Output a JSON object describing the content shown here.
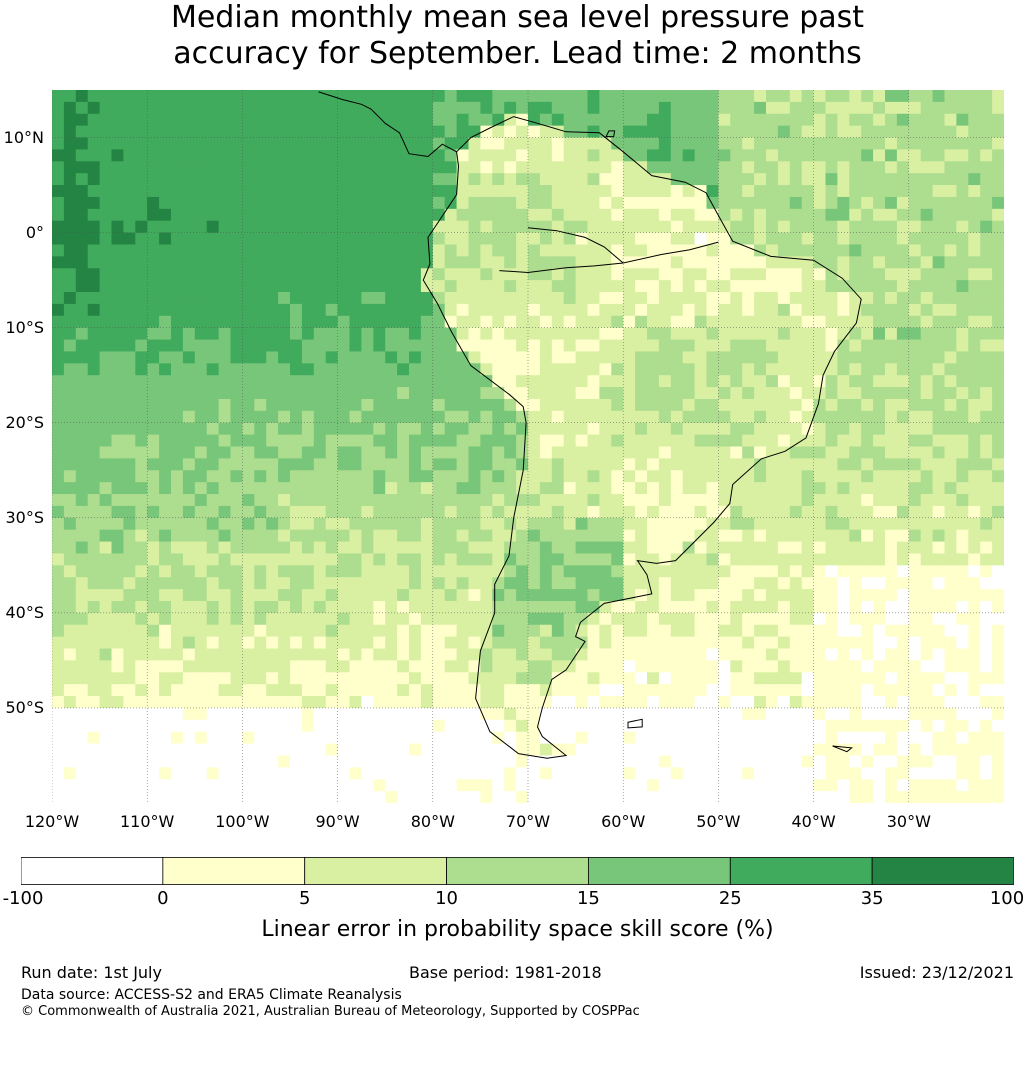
{
  "title_lines": [
    "Median monthly mean sea level pressure past",
    "accuracy for September. Lead time: 2 months"
  ],
  "map": {
    "lon_range": [
      -120,
      -20
    ],
    "lat_range": [
      -60,
      15
    ],
    "lat_ticks": [
      {
        "value": 10,
        "label": "10°N"
      },
      {
        "value": 0,
        "label": "0°"
      },
      {
        "value": -10,
        "label": "10°S"
      },
      {
        "value": -20,
        "label": "20°S"
      },
      {
        "value": -30,
        "label": "30°S"
      },
      {
        "value": -40,
        "label": "40°S"
      },
      {
        "value": -50,
        "label": "50°S"
      }
    ],
    "lon_ticks": [
      {
        "value": -120,
        "label": "120°W"
      },
      {
        "value": -110,
        "label": "110°W"
      },
      {
        "value": -100,
        "label": "100°W"
      },
      {
        "value": -90,
        "label": "90°W"
      },
      {
        "value": -80,
        "label": "80°W"
      },
      {
        "value": -70,
        "label": "70°W"
      },
      {
        "value": -60,
        "label": "60°W"
      },
      {
        "value": -50,
        "label": "50°W"
      },
      {
        "value": -40,
        "label": "40°W"
      },
      {
        "value": -30,
        "label": "30°W"
      }
    ],
    "coastline": [
      [
        -77.5,
        8.5
      ],
      [
        -76,
        10
      ],
      [
        -74,
        11
      ],
      [
        -71.5,
        12.2
      ],
      [
        -69,
        11.5
      ],
      [
        -66,
        10.6
      ],
      [
        -62.5,
        10.5
      ],
      [
        -60,
        8.5
      ],
      [
        -57,
        6
      ],
      [
        -53.5,
        5.3
      ],
      [
        -51.3,
        4.2
      ],
      [
        -50,
        1.8
      ],
      [
        -48.5,
        -0.9
      ],
      [
        -44.5,
        -2.5
      ],
      [
        -40,
        -2.9
      ],
      [
        -37,
        -4.8
      ],
      [
        -35,
        -7
      ],
      [
        -35.5,
        -9.5
      ],
      [
        -37.8,
        -12.5
      ],
      [
        -39,
        -15
      ],
      [
        -39.5,
        -18
      ],
      [
        -40.8,
        -21.6
      ],
      [
        -43,
        -23
      ],
      [
        -45.5,
        -23.8
      ],
      [
        -48.5,
        -26.5
      ],
      [
        -48.8,
        -28.5
      ],
      [
        -50.5,
        -30.5
      ],
      [
        -52.5,
        -32.5
      ],
      [
        -54.5,
        -34.5
      ],
      [
        -56.5,
        -34.8
      ],
      [
        -58.5,
        -34.5
      ],
      [
        -57.5,
        -36
      ],
      [
        -57,
        -38
      ],
      [
        -62,
        -39
      ],
      [
        -64.5,
        -41
      ],
      [
        -65,
        -42.5
      ],
      [
        -64,
        -43
      ],
      [
        -66,
        -46
      ],
      [
        -67.5,
        -47
      ],
      [
        -68.5,
        -50
      ],
      [
        -69,
        -52
      ],
      [
        -68.5,
        -53
      ],
      [
        -66,
        -55
      ],
      [
        -68,
        -55.3
      ],
      [
        -71,
        -54.8
      ],
      [
        -74,
        -52.5
      ],
      [
        -75.5,
        -49
      ],
      [
        -75,
        -44
      ],
      [
        -73.5,
        -40
      ],
      [
        -73.5,
        -37
      ],
      [
        -72,
        -34
      ],
      [
        -71.5,
        -30
      ],
      [
        -70.5,
        -25
      ],
      [
        -70.2,
        -20
      ],
      [
        -70.5,
        -18.3
      ],
      [
        -72,
        -17
      ],
      [
        -76,
        -14
      ],
      [
        -78,
        -10.5
      ],
      [
        -79.5,
        -7.5
      ],
      [
        -81,
        -5
      ],
      [
        -80.3,
        -3.3
      ],
      [
        -80.5,
        -0.5
      ],
      [
        -79.5,
        1
      ],
      [
        -78.5,
        2.5
      ],
      [
        -77.5,
        4
      ],
      [
        -77.3,
        7
      ],
      [
        -77.5,
        8.5
      ]
    ],
    "central_america": [
      [
        -77.5,
        8.5
      ],
      [
        -79,
        9.3
      ],
      [
        -80.5,
        8
      ],
      [
        -82.5,
        8.3
      ],
      [
        -83.5,
        10.5
      ],
      [
        -85,
        11.5
      ],
      [
        -86.5,
        13
      ],
      [
        -87.5,
        13.5
      ],
      [
        -89.5,
        14
      ],
      [
        -92,
        14.8
      ]
    ],
    "rivers": [
      [
        [
          -50,
          -1
        ],
        [
          -53,
          -1.8
        ],
        [
          -56,
          -2.3
        ],
        [
          -60,
          -3.2
        ],
        [
          -63,
          -3.5
        ],
        [
          -66,
          -3.7
        ],
        [
          -70,
          -4.2
        ],
        [
          -73,
          -4
        ]
      ],
      [
        [
          -60,
          -3.2
        ],
        [
          -62,
          -1.5
        ],
        [
          -64,
          -0.5
        ],
        [
          -67,
          0.2
        ],
        [
          -70,
          0.5
        ]
      ]
    ],
    "islands": [
      [
        [
          -59.5,
          -51.5
        ],
        [
          -58,
          -51.2
        ],
        [
          -58,
          -52
        ],
        [
          -59.5,
          -52.1
        ],
        [
          -59.5,
          -51.5
        ]
      ],
      [
        [
          -38,
          -54
        ],
        [
          -36,
          -54.2
        ],
        [
          -36.5,
          -54.6
        ],
        [
          -38,
          -54
        ],
        [
          -38,
          -54
        ]
      ],
      [
        [
          -61.5,
          10.7
        ],
        [
          -60.9,
          10.7
        ],
        [
          -61,
          10.1
        ],
        [
          -61.8,
          10.1
        ],
        [
          -61.5,
          10.7
        ]
      ]
    ]
  },
  "colorbar": {
    "colors": [
      "#ffffff",
      "#ffffcc",
      "#d9f0a3",
      "#addd8e",
      "#78c679",
      "#41ab5d",
      "#238443"
    ],
    "tick_labels": [
      "-100",
      "0",
      "5",
      "10",
      "15",
      "25",
      "35",
      "100"
    ],
    "label": "Linear error in probability space skill score (%)"
  },
  "footer": {
    "run_date": "Run date: 1st July",
    "base_period": "Base period: 1981-2018",
    "issued": "Issued: 23/12/2021",
    "data_source": "Data source: ACCESS-S2 and ERA5 Climate Reanalysis",
    "copyright": "© Commonwealth of Australia 2021, Australian Bureau of Meteorology, Supported by COSPPac"
  }
}
